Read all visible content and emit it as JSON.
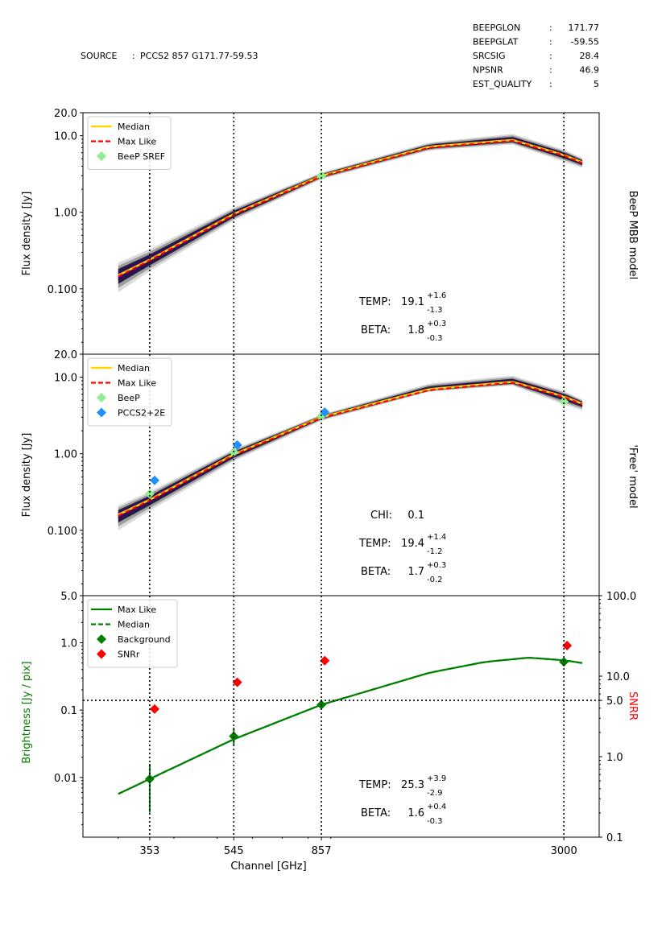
{
  "header": {
    "source_label": "SOURCE",
    "source_sep": ":",
    "source_value": "PCCS2 857 G171.77-59.53",
    "info": [
      {
        "key": "BEEPGLON",
        "sep": ":",
        "value": "171.77"
      },
      {
        "key": "BEEPGLAT",
        "sep": ":",
        "value": "-59.55"
      },
      {
        "key": "SRCSIG",
        "sep": ":",
        "value": "28.4"
      },
      {
        "key": "NPSNR",
        "sep": ":",
        "value": "46.9"
      },
      {
        "key": "EST_QUALITY",
        "sep": ":",
        "value": "5"
      }
    ]
  },
  "colors": {
    "median": "#ffd700",
    "maxlike": "#ff0000",
    "beep": "#90ee90",
    "pccs": "#1e90ff",
    "band_dark": "#2c0d66",
    "background_green": "#008000",
    "snr_red": "#ff0000"
  },
  "chart_data": [
    {
      "type": "line",
      "side_title": "BeeP MBB model",
      "ylabel": "Flux density  [Jy]",
      "xscale": "log",
      "yscale": "log",
      "xlim": [
        250,
        3600
      ],
      "ylim": [
        0.014,
        20.0
      ],
      "yticks": [
        {
          "value": 0.1,
          "label": "0.100"
        },
        {
          "value": 1.0,
          "label": "1.00"
        },
        {
          "value": 10.0,
          "label": "10.0"
        },
        {
          "value": 20.0,
          "label": "20.0"
        }
      ],
      "vlines": [
        353,
        545,
        857,
        3000
      ],
      "legend": {
        "position": "top-left",
        "entries": [
          {
            "label": "Median",
            "style": "median"
          },
          {
            "label": "Max Like",
            "style": "maxlike"
          },
          {
            "label": "BeeP SREF",
            "style": "beep"
          }
        ]
      },
      "series": [
        {
          "name": "Median",
          "x": [
            300,
            353,
            545,
            857,
            1500,
            2300,
            3000,
            3300
          ],
          "y": [
            0.15,
            0.24,
            0.95,
            3.0,
            7.2,
            8.8,
            5.6,
            4.5
          ]
        },
        {
          "name": "Max Like",
          "x": [
            300,
            353,
            545,
            857,
            1500,
            2300,
            3000,
            3300
          ],
          "y": [
            0.145,
            0.235,
            0.93,
            2.95,
            7.0,
            8.6,
            5.5,
            4.4
          ]
        }
      ],
      "band": {
        "x": [
          300,
          353,
          545,
          857,
          1500,
          2300,
          3000,
          3300
        ],
        "low": [
          0.09,
          0.17,
          0.78,
          2.7,
          6.4,
          7.7,
          4.6,
          3.8
        ],
        "high": [
          0.22,
          0.33,
          1.15,
          3.3,
          8.2,
          10.6,
          6.6,
          5.1
        ]
      },
      "points": [
        {
          "name": "BeeP SREF",
          "x": 857,
          "y": 3.0,
          "style": "beep"
        }
      ],
      "params": [
        {
          "label": "TEMP:",
          "value": "19.1",
          "plus": "+1.6",
          "minus": "-1.3"
        },
        {
          "label": "BETA:",
          "value": "1.8",
          "plus": "+0.3",
          "minus": "-0.3"
        }
      ]
    },
    {
      "type": "line",
      "side_title": "'Free' model",
      "ylabel": "Flux density  [Jy]",
      "xscale": "log",
      "yscale": "log",
      "xlim": [
        250,
        3600
      ],
      "ylim": [
        0.014,
        20.0
      ],
      "yticks": [
        {
          "value": 0.1,
          "label": "0.100"
        },
        {
          "value": 1.0,
          "label": "1.00"
        },
        {
          "value": 10.0,
          "label": "10.0"
        },
        {
          "value": 20.0,
          "label": "20.0"
        }
      ],
      "vlines": [
        353,
        545,
        857,
        3000
      ],
      "legend": {
        "position": "top-left",
        "entries": [
          {
            "label": "Median",
            "style": "median"
          },
          {
            "label": "Max Like",
            "style": "maxlike"
          },
          {
            "label": "BeeP",
            "style": "beep"
          },
          {
            "label": "PCCS2+2E",
            "style": "pccs"
          }
        ]
      },
      "series": [
        {
          "name": "Median",
          "x": [
            300,
            353,
            545,
            857,
            1500,
            2300,
            3000,
            3300
          ],
          "y": [
            0.16,
            0.25,
            0.98,
            3.0,
            7.0,
            8.7,
            5.6,
            4.5
          ]
        },
        {
          "name": "Max Like",
          "x": [
            300,
            353,
            545,
            857,
            1500,
            2300,
            3000,
            3300
          ],
          "y": [
            0.155,
            0.245,
            0.96,
            2.95,
            6.8,
            8.5,
            5.5,
            4.4
          ]
        }
      ],
      "band": {
        "x": [
          300,
          353,
          545,
          857,
          1500,
          2300,
          3000,
          3300
        ],
        "low": [
          0.1,
          0.18,
          0.8,
          2.7,
          6.5,
          7.8,
          4.4,
          3.7
        ],
        "high": [
          0.21,
          0.32,
          1.15,
          3.25,
          8.3,
          10.5,
          6.6,
          5.1
        ]
      },
      "points": [
        {
          "name": "BeeP",
          "x": 353,
          "y": 0.3,
          "style": "beep"
        },
        {
          "name": "BeeP",
          "x": 545,
          "y": 1.05,
          "style": "beep"
        },
        {
          "name": "BeeP",
          "x": 857,
          "y": 3.1,
          "style": "beep"
        },
        {
          "name": "BeeP",
          "x": 3000,
          "y": 4.8,
          "style": "beep"
        },
        {
          "name": "PCCS2+2E",
          "x": 362,
          "y": 0.45,
          "style": "pccs"
        },
        {
          "name": "PCCS2+2E",
          "x": 555,
          "y": 1.3,
          "style": "pccs"
        },
        {
          "name": "PCCS2+2E",
          "x": 872,
          "y": 3.5,
          "style": "pccs"
        }
      ],
      "params": [
        {
          "label": "CHI:",
          "value": "0.1",
          "plus": "",
          "minus": ""
        },
        {
          "label": "TEMP:",
          "value": "19.4",
          "plus": "+1.4",
          "minus": "-1.2"
        },
        {
          "label": "BETA:",
          "value": "1.7",
          "plus": "+0.3",
          "minus": "-0.2"
        }
      ]
    },
    {
      "type": "line",
      "side_title": "SNRR",
      "ylabel": "Brightness [Jy / pix]",
      "xlabel": "Channel [GHz]",
      "xscale": "log",
      "yscale": "log",
      "xlim": [
        250,
        3600
      ],
      "ylim": [
        0.0013,
        5.0
      ],
      "yticks": [
        {
          "value": 0.01,
          "label": "0.01"
        },
        {
          "value": 0.1,
          "label": "0.1"
        },
        {
          "value": 1.0,
          "label": "1.0"
        },
        {
          "value": 5.0,
          "label": "5.0"
        }
      ],
      "xticks": [
        353,
        545,
        857,
        3000
      ],
      "xticklabels": [
        "353",
        "545",
        "857",
        "3000"
      ],
      "vlines": [
        353,
        545,
        857,
        3000
      ],
      "y2lim": [
        0.1,
        100.0
      ],
      "y2ticks": [
        {
          "value": 0.1,
          "label": "0.1"
        },
        {
          "value": 1.0,
          "label": "1.0"
        },
        {
          "value": 5.0,
          "label": "5.0"
        },
        {
          "value": 10.0,
          "label": "10.0"
        },
        {
          "value": 100.0,
          "label": "100.0"
        }
      ],
      "hline_y2": 5.0,
      "legend": {
        "position": "top-left",
        "entries": [
          {
            "label": "Max Like",
            "style": "green-solid"
          },
          {
            "label": "Median",
            "style": "green-dashed"
          },
          {
            "label": "Background",
            "style": "green-diamond"
          },
          {
            "label": "SNRr",
            "style": "red-diamond"
          }
        ]
      },
      "series": [
        {
          "name": "Max Like",
          "x": [
            300,
            353,
            545,
            857,
            1500,
            2000,
            2500,
            3000,
            3300
          ],
          "y": [
            0.0057,
            0.0095,
            0.037,
            0.12,
            0.36,
            0.52,
            0.6,
            0.55,
            0.5
          ]
        },
        {
          "name": "Median",
          "x": [
            300,
            353,
            545,
            857,
            1500,
            2000,
            2500,
            3000,
            3300
          ],
          "y": [
            0.0057,
            0.0095,
            0.037,
            0.12,
            0.36,
            0.52,
            0.6,
            0.55,
            0.5
          ]
        }
      ],
      "background": [
        {
          "x": 353,
          "y": 0.0095,
          "ylo": 0.003,
          "yhi": 0.016
        },
        {
          "x": 545,
          "y": 0.041,
          "ylo": 0.03,
          "yhi": 0.055
        },
        {
          "x": 857,
          "y": 0.12,
          "ylo": 0.11,
          "yhi": 0.135
        },
        {
          "x": 3000,
          "y": 0.52,
          "ylo": 0.48,
          "yhi": 0.56
        }
      ],
      "snrr": [
        {
          "x": 362,
          "y": 3.9
        },
        {
          "x": 555,
          "y": 8.4
        },
        {
          "x": 872,
          "y": 15.6
        },
        {
          "x": 3050,
          "y": 24.0
        }
      ],
      "params": [
        {
          "label": "TEMP:",
          "value": "25.3",
          "plus": "+3.9",
          "minus": "-2.9"
        },
        {
          "label": "BETA:",
          "value": "1.6",
          "plus": "+0.4",
          "minus": "-0.3"
        }
      ]
    }
  ]
}
